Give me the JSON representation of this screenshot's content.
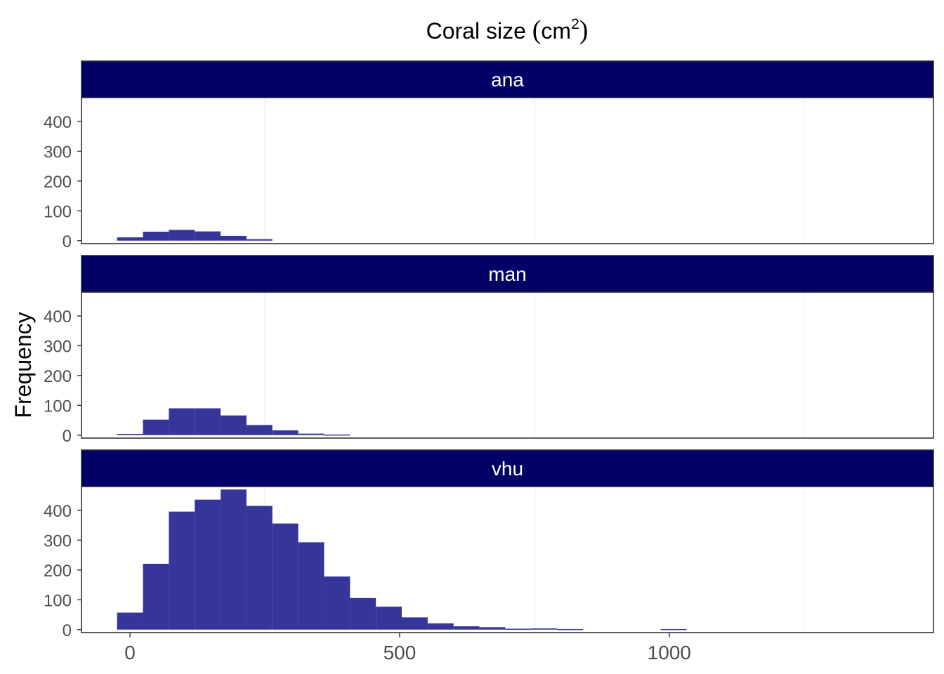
{
  "chart_data": {
    "type": "bar",
    "title": {
      "main": "Coral size",
      "unit_open": "(",
      "unit": "cm",
      "unit_sup": "2",
      "unit_close": ")"
    },
    "xlabel": "",
    "ylabel": "Frequency",
    "bin_width": 48,
    "xlim": [
      -90,
      1490
    ],
    "ylim": [
      -10,
      480
    ],
    "x_ticks": [
      0,
      500,
      1000
    ],
    "y_ticks": [
      0,
      100,
      200,
      300,
      400
    ],
    "minor_x_gridlines": [
      250,
      750,
      1250
    ],
    "grid": true,
    "colors": {
      "bar": "#36369a",
      "strip": "#000066",
      "strip_text": "#ffffff",
      "panel_border": "#333333",
      "gridline": "#ebebeb"
    },
    "panels": [
      {
        "label": "ana",
        "bins": [
          {
            "x": 0,
            "y": 11
          },
          {
            "x": 48,
            "y": 30
          },
          {
            "x": 96,
            "y": 36
          },
          {
            "x": 144,
            "y": 31
          },
          {
            "x": 192,
            "y": 16
          },
          {
            "x": 240,
            "y": 5
          }
        ]
      },
      {
        "label": "man",
        "bins": [
          {
            "x": 0,
            "y": 4
          },
          {
            "x": 48,
            "y": 52
          },
          {
            "x": 96,
            "y": 90
          },
          {
            "x": 144,
            "y": 90
          },
          {
            "x": 192,
            "y": 66
          },
          {
            "x": 240,
            "y": 34
          },
          {
            "x": 288,
            "y": 16
          },
          {
            "x": 336,
            "y": 5
          },
          {
            "x": 384,
            "y": 2
          }
        ]
      },
      {
        "label": "vhu",
        "bins": [
          {
            "x": 0,
            "y": 57
          },
          {
            "x": 48,
            "y": 221
          },
          {
            "x": 96,
            "y": 396
          },
          {
            "x": 144,
            "y": 436
          },
          {
            "x": 192,
            "y": 470
          },
          {
            "x": 240,
            "y": 415
          },
          {
            "x": 288,
            "y": 356
          },
          {
            "x": 336,
            "y": 293
          },
          {
            "x": 384,
            "y": 178
          },
          {
            "x": 432,
            "y": 106
          },
          {
            "x": 480,
            "y": 77
          },
          {
            "x": 528,
            "y": 41
          },
          {
            "x": 576,
            "y": 21
          },
          {
            "x": 624,
            "y": 11
          },
          {
            "x": 672,
            "y": 8
          },
          {
            "x": 720,
            "y": 3
          },
          {
            "x": 768,
            "y": 4
          },
          {
            "x": 816,
            "y": 2
          },
          {
            "x": 1008,
            "y": 2
          }
        ]
      }
    ]
  }
}
